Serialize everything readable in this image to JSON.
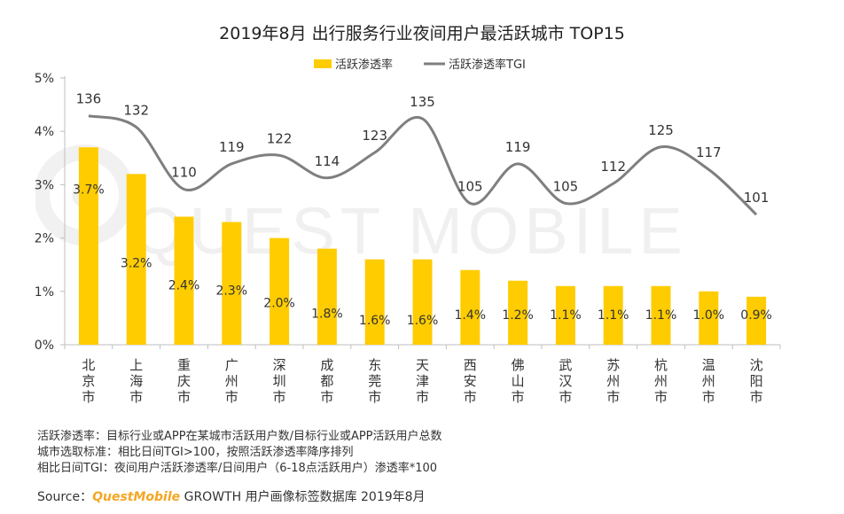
{
  "chart_data": {
    "type": "bar",
    "title": "2019年8月 出行服务行业夜间用户最活跃城市 TOP15",
    "categories": [
      "北京市",
      "上海市",
      "重庆市",
      "广州市",
      "深圳市",
      "成都市",
      "东莞市",
      "天津市",
      "西安市",
      "佛山市",
      "武汉市",
      "苏州市",
      "杭州市",
      "温州市",
      "沈阳市"
    ],
    "series": [
      {
        "name": "活跃渗透率",
        "type": "bar",
        "color": "#FFCC00",
        "values": [
          3.7,
          3.2,
          2.4,
          2.3,
          2.0,
          1.8,
          1.6,
          1.6,
          1.4,
          1.2,
          1.1,
          1.1,
          1.1,
          1.0,
          0.9
        ],
        "labels": [
          "3.7%",
          "3.2%",
          "2.4%",
          "2.3%",
          "2.0%",
          "1.8%",
          "1.6%",
          "1.6%",
          "1.4%",
          "1.2%",
          "1.1%",
          "1.1%",
          "1.1%",
          "1.0%",
          "0.9%"
        ]
      },
      {
        "name": "活跃渗透率TGI",
        "type": "line",
        "color": "#7f7f7f",
        "values": [
          136,
          132,
          110,
          119,
          122,
          114,
          123,
          135,
          105,
          119,
          105,
          112,
          125,
          117,
          101
        ]
      }
    ],
    "y_axis": {
      "ticks": [
        "0%",
        "1%",
        "2%",
        "3%",
        "4%",
        "5%"
      ],
      "ylim": [
        0,
        5
      ]
    },
    "legend_position": "top-center",
    "grid": false
  },
  "watermark": "QUEST MOBILE",
  "notes": [
    "活跃渗透率：目标行业或APP在某城市活跃用户数/目标行业或APP活跃用户总数",
    "城市选取标准：相比日间TGI>100，按照活跃渗透率降序排列",
    "相比日间TGI：夜间用户活跃渗透率/日间用户（6-18点活跃用户）渗透率*100"
  ],
  "source": {
    "label": "Source：",
    "brand": "QuestMobile",
    "text": " GROWTH 用户画像标签数据库 2019年8月"
  }
}
